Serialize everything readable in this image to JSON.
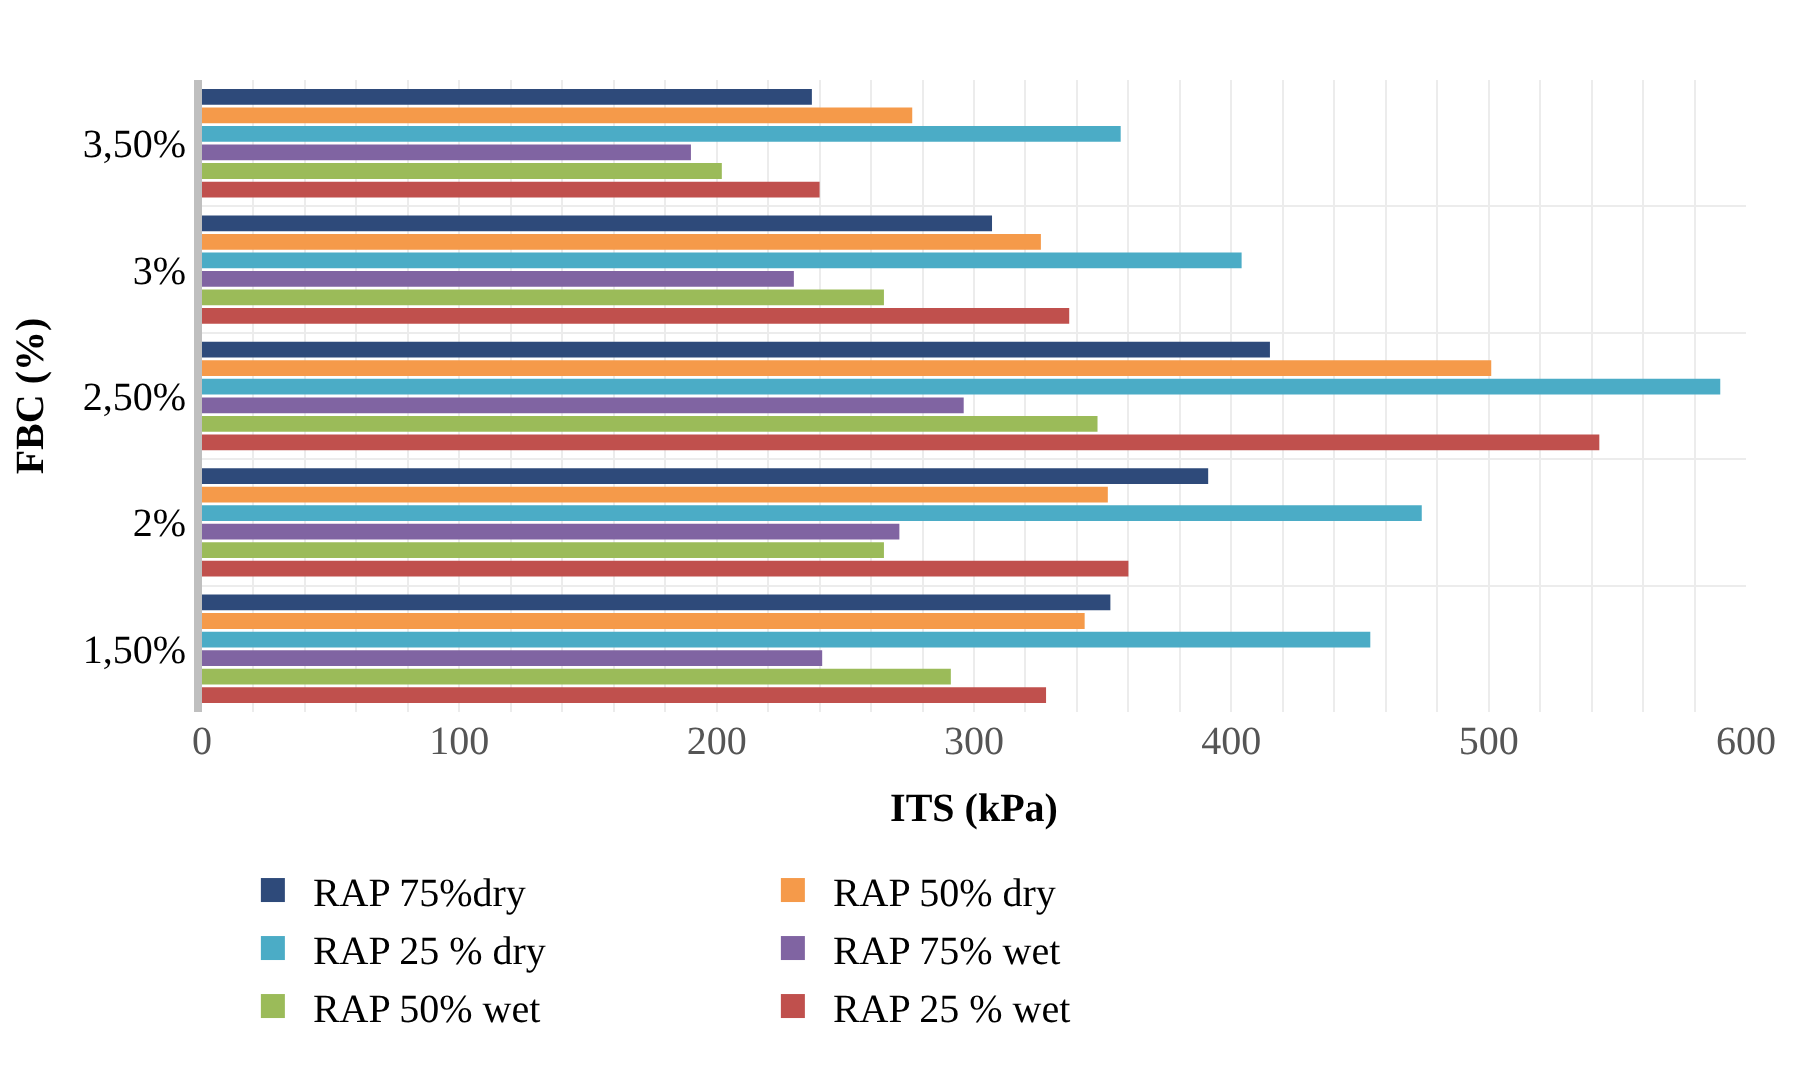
{
  "chart_data": {
    "type": "bar",
    "orientation": "horizontal",
    "xlabel": "ITS (kPa)",
    "ylabel": "FBC (%)",
    "categories": [
      "3,50%",
      "3%",
      "2,50%",
      "2%",
      "1,50%"
    ],
    "series": [
      {
        "name": "RAP 75%dry",
        "color": "#2e4a7a",
        "values": [
          237,
          307,
          415,
          391,
          353
        ]
      },
      {
        "name": "RAP 50% dry",
        "color": "#f59a4a",
        "values": [
          276,
          326,
          501,
          352,
          343
        ]
      },
      {
        "name": "RAP 25 % dry",
        "color": "#4bacc6",
        "values": [
          357,
          404,
          590,
          474,
          454
        ]
      },
      {
        "name": "RAP 75% wet",
        "color": "#8064a2",
        "values": [
          190,
          230,
          296,
          271,
          241
        ]
      },
      {
        "name": "RAP 50% wet",
        "color": "#9bbb59",
        "values": [
          202,
          265,
          348,
          265,
          291
        ]
      },
      {
        "name": "RAP 25 % wet",
        "color": "#c0504d",
        "values": [
          240,
          337,
          543,
          360,
          328
        ]
      }
    ],
    "xlim": [
      0,
      600
    ],
    "xticks": [
      0,
      {
        "value": 20,
        "label": null
      },
      {
        "value": 40,
        "label": null
      },
      {
        "value": 60,
        "label": null
      },
      {
        "value": 80,
        "label": null
      },
      100,
      {
        "value": 120,
        "label": null
      },
      {
        "value": 140,
        "label": null
      },
      {
        "value": 160,
        "label": null
      },
      {
        "value": 180,
        "label": null
      },
      200,
      {
        "value": 220,
        "label": null
      },
      {
        "value": 240,
        "label": null
      },
      {
        "value": 260,
        "label": null
      },
      {
        "value": 280,
        "label": null
      },
      300,
      {
        "value": 320,
        "label": null
      },
      {
        "value": 340,
        "label": null
      },
      {
        "value": 360,
        "label": null
      },
      {
        "value": 380,
        "label": null
      },
      400,
      {
        "value": 420,
        "label": null
      },
      {
        "value": 440,
        "label": null
      },
      {
        "value": 460,
        "label": null
      },
      {
        "value": 480,
        "label": null
      },
      500,
      {
        "value": 520,
        "label": null
      },
      {
        "value": 540,
        "label": null
      },
      {
        "value": 560,
        "label": null
      },
      {
        "value": 580,
        "label": null
      },
      600
    ],
    "grid": true,
    "legend": "bottom"
  }
}
